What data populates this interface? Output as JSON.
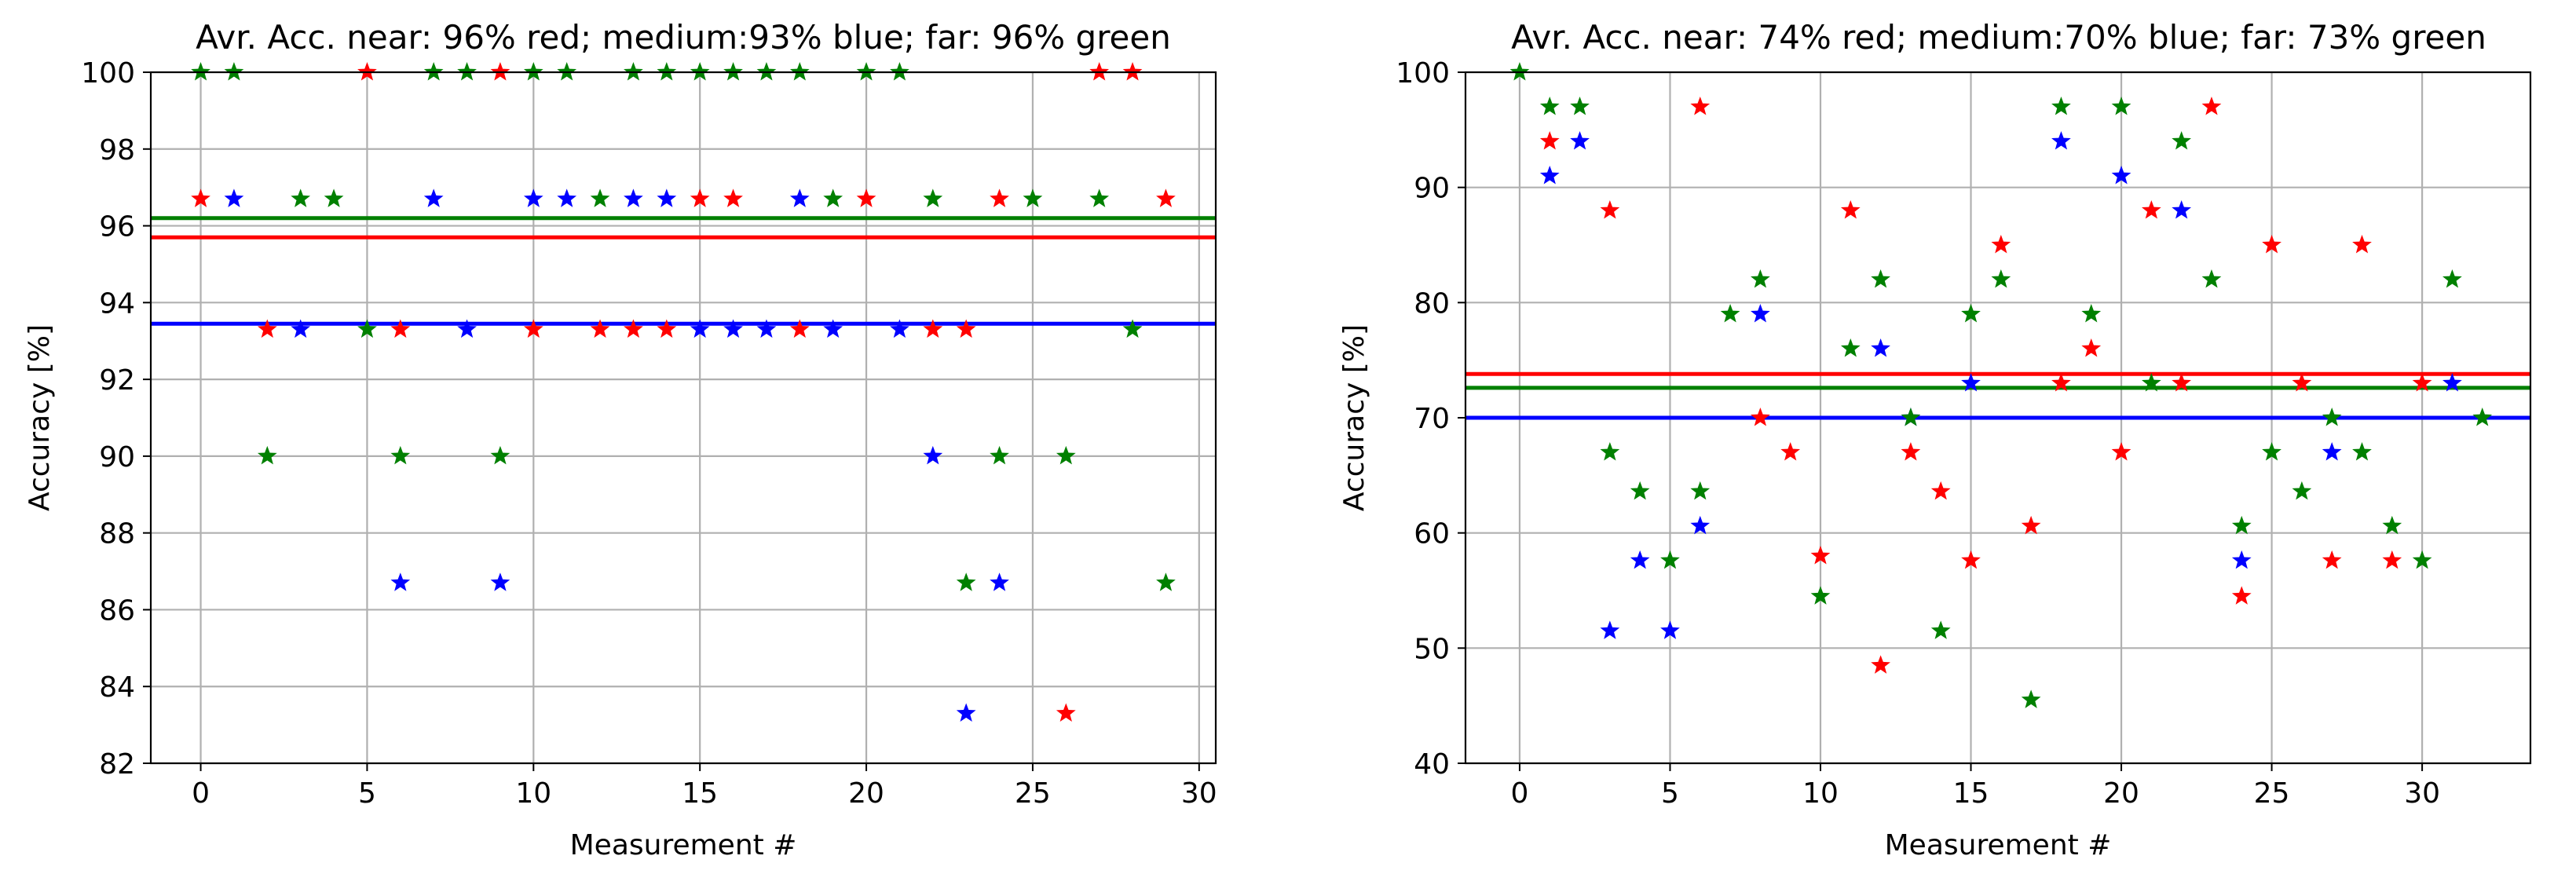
{
  "chart_data": [
    {
      "type": "scatter",
      "title": "Avr. Acc. near: 96% red; medium:93% blue; far: 96% green",
      "xlabel": "Measurement #",
      "ylabel": "Accuracy [%]",
      "xlim": [
        -1.5,
        30.5
      ],
      "ylim": [
        82,
        100
      ],
      "xticks": [
        0,
        5,
        10,
        15,
        20,
        25,
        30
      ],
      "yticks": [
        82,
        84,
        86,
        88,
        90,
        92,
        94,
        96,
        98,
        100
      ],
      "grid": true,
      "series": [
        {
          "name": "near",
          "color": "#ff0000",
          "points": [
            [
              0,
              96.7
            ],
            [
              2,
              93.3
            ],
            [
              5,
              100
            ],
            [
              6,
              93.3
            ],
            [
              9,
              100
            ],
            [
              10,
              93.3
            ],
            [
              12,
              93.3
            ],
            [
              13,
              93.3
            ],
            [
              14,
              93.3
            ],
            [
              15,
              96.7
            ],
            [
              16,
              96.7
            ],
            [
              18,
              93.3
            ],
            [
              20,
              96.7
            ],
            [
              22,
              93.3
            ],
            [
              23,
              93.3
            ],
            [
              24,
              96.7
            ],
            [
              26,
              83.3
            ],
            [
              27,
              100
            ],
            [
              28,
              100
            ],
            [
              29,
              96.7
            ]
          ],
          "mean": 95.7
        },
        {
          "name": "medium",
          "color": "#0000ff",
          "points": [
            [
              1,
              96.7
            ],
            [
              3,
              93.3
            ],
            [
              6,
              86.7
            ],
            [
              7,
              96.7
            ],
            [
              8,
              93.3
            ],
            [
              9,
              86.7
            ],
            [
              10,
              96.7
            ],
            [
              11,
              96.7
            ],
            [
              13,
              96.7
            ],
            [
              14,
              96.7
            ],
            [
              15,
              93.3
            ],
            [
              16,
              93.3
            ],
            [
              17,
              93.3
            ],
            [
              18,
              96.7
            ],
            [
              19,
              93.3
            ],
            [
              21,
              93.3
            ],
            [
              22,
              90
            ],
            [
              23,
              83.3
            ],
            [
              24,
              86.7
            ]
          ],
          "mean": 93.45
        },
        {
          "name": "far",
          "color": "#008000",
          "points": [
            [
              0,
              100
            ],
            [
              1,
              100
            ],
            [
              2,
              90
            ],
            [
              3,
              96.7
            ],
            [
              4,
              96.7
            ],
            [
              5,
              93.3
            ],
            [
              6,
              90
            ],
            [
              7,
              100
            ],
            [
              8,
              100
            ],
            [
              9,
              90
            ],
            [
              10,
              100
            ],
            [
              11,
              100
            ],
            [
              12,
              96.7
            ],
            [
              13,
              100
            ],
            [
              14,
              100
            ],
            [
              15,
              100
            ],
            [
              16,
              100
            ],
            [
              17,
              100
            ],
            [
              18,
              100
            ],
            [
              19,
              96.7
            ],
            [
              20,
              100
            ],
            [
              21,
              100
            ],
            [
              22,
              96.7
            ],
            [
              23,
              86.7
            ],
            [
              24,
              90
            ],
            [
              25,
              96.7
            ],
            [
              26,
              90
            ],
            [
              27,
              96.7
            ],
            [
              28,
              93.3
            ],
            [
              29,
              86.7
            ]
          ],
          "mean": 96.2
        }
      ]
    },
    {
      "type": "scatter",
      "title": "Avr. Acc. near: 74% red; medium:70% blue; far: 73% green",
      "xlabel": "Measurement #",
      "ylabel": "Accuracy [%]",
      "xlim": [
        -1.8,
        33.6
      ],
      "ylim": [
        40,
        100
      ],
      "xticks": [
        0,
        5,
        10,
        15,
        20,
        25,
        30
      ],
      "yticks": [
        40,
        50,
        60,
        70,
        80,
        90,
        100
      ],
      "grid": true,
      "series": [
        {
          "name": "near",
          "color": "#ff0000",
          "points": [
            [
              1,
              94
            ],
            [
              3,
              88
            ],
            [
              6,
              97
            ],
            [
              8,
              70
            ],
            [
              9,
              67
            ],
            [
              10,
              58
            ],
            [
              11,
              88
            ],
            [
              12,
              48.5
            ],
            [
              13,
              67
            ],
            [
              14,
              63.6
            ],
            [
              15,
              57.6
            ],
            [
              16,
              85
            ],
            [
              17,
              60.6
            ],
            [
              18,
              73
            ],
            [
              19,
              76
            ],
            [
              20,
              67
            ],
            [
              21,
              88
            ],
            [
              22,
              73
            ],
            [
              23,
              97
            ],
            [
              24,
              54.5
            ],
            [
              25,
              85
            ],
            [
              26,
              73
            ],
            [
              27,
              57.6
            ],
            [
              28,
              85
            ],
            [
              29,
              57.6
            ],
            [
              30,
              73
            ]
          ],
          "mean": 73.8
        },
        {
          "name": "medium",
          "color": "#0000ff",
          "points": [
            [
              1,
              91
            ],
            [
              2,
              94
            ],
            [
              3,
              51.5
            ],
            [
              4,
              57.6
            ],
            [
              5,
              51.5
            ],
            [
              6,
              60.6
            ],
            [
              8,
              79
            ],
            [
              12,
              76
            ],
            [
              13,
              70
            ],
            [
              15,
              73
            ],
            [
              18,
              94
            ],
            [
              20,
              91
            ],
            [
              22,
              88
            ],
            [
              24,
              57.6
            ],
            [
              27,
              67
            ],
            [
              31,
              73
            ]
          ],
          "mean": 70
        },
        {
          "name": "far",
          "color": "#008000",
          "points": [
            [
              0,
              100
            ],
            [
              1,
              97
            ],
            [
              2,
              97
            ],
            [
              3,
              67
            ],
            [
              4,
              63.6
            ],
            [
              5,
              57.6
            ],
            [
              6,
              63.6
            ],
            [
              7,
              79
            ],
            [
              8,
              82
            ],
            [
              10,
              54.5
            ],
            [
              11,
              76
            ],
            [
              12,
              82
            ],
            [
              13,
              70
            ],
            [
              14,
              51.5
            ],
            [
              15,
              79
            ],
            [
              16,
              82
            ],
            [
              17,
              45.5
            ],
            [
              18,
              97
            ],
            [
              19,
              79
            ],
            [
              20,
              97
            ],
            [
              21,
              73
            ],
            [
              22,
              94
            ],
            [
              23,
              82
            ],
            [
              24,
              60.6
            ],
            [
              25,
              67
            ],
            [
              26,
              63.6
            ],
            [
              27,
              70
            ],
            [
              28,
              67
            ],
            [
              29,
              60.6
            ],
            [
              30,
              57.6
            ],
            [
              31,
              82
            ],
            [
              32,
              70
            ]
          ],
          "mean": 72.6
        }
      ]
    }
  ]
}
